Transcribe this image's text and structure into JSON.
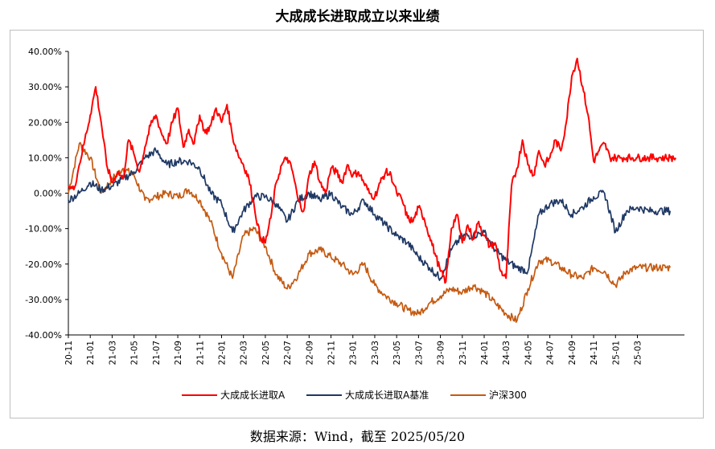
{
  "chart_data": {
    "type": "line",
    "title": "大成成长进取成立以来业绩",
    "source": "数据来源：Wind，截至 2025/05/20",
    "xlabel": "",
    "ylabel": "",
    "ylim": [
      -0.4,
      0.4
    ],
    "y_ticks": [
      0.4,
      0.3,
      0.2,
      0.1,
      0.0,
      -0.1,
      -0.2,
      -0.3,
      -0.4
    ],
    "y_tick_labels": [
      "40.00%",
      "30.00%",
      "20.00%",
      "10.00%",
      "0.00%",
      "-10.00%",
      "-20.00%",
      "-30.00%",
      "-40.00%"
    ],
    "x_tick_labels": [
      "20-11",
      "21-01",
      "21-03",
      "21-05",
      "21-07",
      "21-09",
      "21-11",
      "22-01",
      "22-03",
      "22-05",
      "22-07",
      "22-09",
      "22-11",
      "23-01",
      "23-03",
      "23-05",
      "23-07",
      "23-09",
      "23-11",
      "24-01",
      "24-03",
      "24-05",
      "24-07",
      "24-09",
      "24-11",
      "25-01",
      "25-03"
    ],
    "x_range": [
      "20-11",
      "25-05"
    ],
    "grid": false,
    "legend_position": "bottom",
    "series": [
      {
        "name": "大成成长进取A",
        "color": "#ff0000",
        "x": [
          0,
          0.5,
          1,
          1.5,
          2,
          2.5,
          3,
          3.5,
          4,
          4.5,
          5,
          5.5,
          6,
          6.5,
          7,
          7.5,
          8,
          8.5,
          9,
          9.5,
          10,
          10.5,
          11,
          11.5,
          12,
          12.5,
          13,
          13.5,
          14,
          14.5,
          15,
          15.5,
          16,
          16.5,
          17,
          17.5,
          18,
          18.5,
          19,
          19.5,
          20,
          20.5,
          21,
          21.5,
          22,
          22.5,
          23,
          23.5,
          24,
          24.5,
          25,
          25.5,
          26,
          26.5,
          27,
          27.5,
          28,
          28.5,
          29,
          29.5,
          30,
          30.5,
          31,
          31.5,
          32,
          32.5,
          33,
          33.5,
          34,
          34.5,
          35,
          35.5,
          36,
          36.5,
          37,
          37.5,
          38,
          38.5,
          39,
          39.5,
          40,
          40.5,
          41,
          41.5,
          42,
          42.5,
          43,
          43.5,
          44,
          44.5,
          45,
          45.5,
          46,
          46.5,
          47,
          47.5,
          48,
          48.5,
          49,
          49.5,
          50,
          50.5,
          51,
          51.5,
          52,
          52.5,
          53,
          53.5,
          54,
          54.5,
          55,
          55.5
        ],
        "values": [
          0.02,
          0.01,
          0.08,
          0.15,
          0.22,
          0.3,
          0.2,
          0.08,
          0.03,
          0.06,
          0.04,
          0.15,
          0.11,
          0.06,
          0.13,
          0.19,
          0.22,
          0.17,
          0.14,
          0.2,
          0.24,
          0.13,
          0.18,
          0.14,
          0.22,
          0.17,
          0.19,
          0.24,
          0.2,
          0.25,
          0.16,
          0.11,
          0.08,
          0.04,
          -0.04,
          -0.12,
          -0.14,
          -0.07,
          0.03,
          0.08,
          0.1,
          0.06,
          -0.02,
          -0.05,
          0.05,
          0.09,
          0.03,
          0.0,
          0.07,
          0.06,
          0.03,
          0.08,
          0.05,
          0.06,
          0.03,
          0.0,
          -0.01,
          0.03,
          0.06,
          0.05,
          0.0,
          -0.02,
          -0.07,
          -0.08,
          -0.04,
          -0.07,
          -0.12,
          -0.17,
          -0.22,
          -0.25,
          -0.1,
          -0.06,
          -0.14,
          -0.09,
          -0.13,
          -0.08,
          -0.12,
          -0.15,
          -0.14,
          -0.22,
          -0.24,
          0.02,
          0.07,
          0.15,
          0.08,
          0.05,
          0.12,
          0.08,
          0.1,
          0.15,
          0.12,
          0.2,
          0.33,
          0.38,
          0.3,
          0.22,
          0.09,
          0.12,
          0.14,
          0.1,
          0.1,
          0.1,
          0.1,
          0.1,
          0.1,
          0.1,
          0.1,
          0.1,
          0.1,
          0.1,
          0.1,
          0.1
        ]
      },
      {
        "name": "大成成长进取A基准",
        "color": "#1f3864",
        "x": [
          0,
          1,
          2,
          3,
          4,
          5,
          6,
          7,
          8,
          9,
          10,
          11,
          12,
          13,
          14,
          15,
          16,
          17,
          18,
          19,
          20,
          21,
          22,
          23,
          24,
          25,
          26,
          27,
          28,
          29,
          30,
          31,
          32,
          33,
          34,
          35,
          36,
          37,
          38,
          39,
          40,
          41,
          42,
          43,
          44,
          45,
          46,
          47,
          48,
          49,
          50,
          51,
          52,
          53,
          54,
          55
        ],
        "values": [
          -0.02,
          0.0,
          0.03,
          0.01,
          0.02,
          0.04,
          0.06,
          0.1,
          0.12,
          0.08,
          0.09,
          0.09,
          0.07,
          0.0,
          -0.03,
          -0.11,
          -0.05,
          -0.01,
          -0.01,
          -0.03,
          -0.08,
          -0.02,
          0.0,
          -0.02,
          0.0,
          -0.04,
          -0.06,
          -0.02,
          -0.06,
          -0.09,
          -0.12,
          -0.14,
          -0.18,
          -0.21,
          -0.24,
          -0.16,
          -0.12,
          -0.12,
          -0.11,
          -0.16,
          -0.19,
          -0.21,
          -0.22,
          -0.06,
          -0.03,
          -0.02,
          -0.06,
          -0.04,
          -0.01,
          0.0,
          -0.11,
          -0.05,
          -0.04,
          -0.05,
          -0.05,
          -0.05
        ]
      },
      {
        "name": "沪深300",
        "color": "#c55a11",
        "x": [
          0,
          1,
          2,
          3,
          4,
          5,
          6,
          7,
          8,
          9,
          10,
          11,
          12,
          13,
          14,
          15,
          16,
          17,
          18,
          19,
          20,
          21,
          22,
          23,
          24,
          25,
          26,
          27,
          28,
          29,
          30,
          31,
          32,
          33,
          34,
          35,
          36,
          37,
          38,
          39,
          40,
          41,
          42,
          43,
          44,
          45,
          46,
          47,
          48,
          49,
          50,
          51,
          52,
          53,
          54,
          55
        ],
        "values": [
          0.0,
          0.14,
          0.1,
          0.0,
          0.04,
          0.07,
          0.05,
          -0.02,
          -0.01,
          0.0,
          -0.01,
          0.01,
          -0.02,
          -0.08,
          -0.17,
          -0.24,
          -0.12,
          -0.1,
          -0.15,
          -0.23,
          -0.27,
          -0.23,
          -0.17,
          -0.16,
          -0.18,
          -0.2,
          -0.23,
          -0.2,
          -0.26,
          -0.29,
          -0.31,
          -0.33,
          -0.34,
          -0.31,
          -0.29,
          -0.27,
          -0.28,
          -0.26,
          -0.28,
          -0.31,
          -0.34,
          -0.36,
          -0.27,
          -0.19,
          -0.19,
          -0.21,
          -0.23,
          -0.24,
          -0.21,
          -0.22,
          -0.26,
          -0.22,
          -0.21,
          -0.21,
          -0.21,
          -0.21
        ]
      }
    ]
  }
}
